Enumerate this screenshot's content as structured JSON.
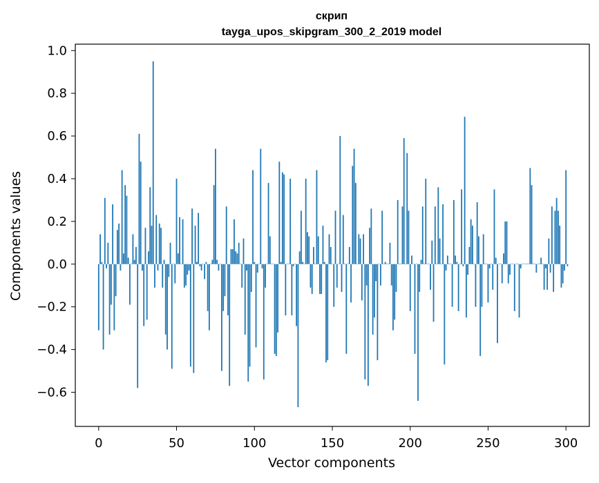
{
  "chart_data": {
    "type": "bar",
    "title_line1": "скрип",
    "title_line2": "tayga_upos_skipgram_300_2_2019 model",
    "xlabel": "Vector components",
    "ylabel": "Components values",
    "xlim": [
      -15,
      315
    ],
    "ylim": [
      -0.76,
      1.03
    ],
    "xticks": [
      0,
      50,
      100,
      150,
      200,
      250,
      300
    ],
    "xtick_labels": [
      "0",
      "50",
      "100",
      "150",
      "200",
      "250",
      "300"
    ],
    "yticks": [
      -0.6,
      -0.4,
      -0.2,
      0.0,
      0.2,
      0.4,
      0.6,
      0.8,
      1.0
    ],
    "ytick_labels": [
      "−0.6",
      "−0.4",
      "−0.2",
      "0.0",
      "0.2",
      "0.4",
      "0.6",
      "0.8",
      "1.0"
    ],
    "grid": false,
    "bar_color": "#1f77b4",
    "values": [
      -0.31,
      0.14,
      0.01,
      -0.4,
      0.31,
      -0.02,
      0.1,
      -0.33,
      -0.19,
      0.28,
      -0.31,
      -0.15,
      0.16,
      0.19,
      -0.03,
      0.44,
      0.05,
      0.37,
      0.32,
      0.03,
      -0.19,
      0.0,
      0.14,
      0.02,
      0.08,
      -0.58,
      0.61,
      0.48,
      -0.03,
      -0.29,
      0.17,
      -0.26,
      0.06,
      0.36,
      0.18,
      0.95,
      -0.11,
      0.23,
      -0.03,
      0.19,
      0.17,
      -0.11,
      0.02,
      -0.33,
      -0.4,
      -0.06,
      0.1,
      -0.49,
      0.0,
      -0.09,
      0.4,
      0.05,
      0.22,
      0.0,
      0.21,
      -0.11,
      -0.1,
      -0.05,
      -0.03,
      -0.48,
      0.26,
      -0.51,
      0.18,
      0.01,
      0.24,
      -0.01,
      -0.03,
      0.0,
      -0.07,
      0.01,
      -0.22,
      -0.31,
      0.0,
      0.02,
      0.37,
      0.54,
      0.02,
      -0.03,
      0.0,
      -0.5,
      -0.22,
      -0.15,
      0.27,
      -0.24,
      -0.57,
      0.07,
      0.07,
      0.21,
      0.06,
      0.05,
      0.1,
      0.0,
      -0.11,
      0.12,
      -0.33,
      -0.03,
      -0.55,
      -0.48,
      -0.13,
      0.44,
      0.01,
      -0.39,
      -0.04,
      0.0,
      0.54,
      -0.02,
      -0.54,
      -0.11,
      0.0,
      0.38,
      0.13,
      0.0,
      0.0,
      -0.42,
      -0.43,
      -0.32,
      0.48,
      0.01,
      0.43,
      0.42,
      -0.24,
      0.0,
      0.0,
      0.4,
      -0.24,
      -0.01,
      0.0,
      -0.29,
      -0.67,
      0.06,
      0.25,
      0.01,
      0.0,
      0.4,
      0.15,
      0.13,
      -0.11,
      -0.14,
      0.08,
      0.0,
      0.44,
      0.13,
      -0.14,
      -0.14,
      0.18,
      0.01,
      -0.46,
      -0.45,
      0.14,
      0.08,
      0.0,
      -0.2,
      0.25,
      -0.11,
      0.0,
      0.6,
      -0.13,
      0.23,
      0.0,
      -0.42,
      0.0,
      0.08,
      -0.18,
      0.46,
      0.54,
      0.38,
      0.0,
      0.14,
      0.12,
      -0.17,
      0.14,
      -0.54,
      -0.1,
      -0.57,
      0.17,
      0.26,
      -0.33,
      -0.25,
      -0.08,
      -0.45,
      0.0,
      -0.1,
      0.25,
      0.0,
      0.01,
      0.0,
      0.0,
      0.1,
      -0.1,
      -0.31,
      -0.26,
      -0.13,
      0.3,
      0.0,
      0.0,
      0.27,
      0.59,
      0.0,
      0.52,
      0.25,
      -0.22,
      0.04,
      0.0,
      -0.42,
      0.0,
      -0.64,
      -0.13,
      0.02,
      0.27,
      0.0,
      0.4,
      0.0,
      0.0,
      -0.12,
      0.11,
      -0.27,
      0.27,
      0.0,
      0.36,
      0.12,
      0.0,
      0.28,
      -0.47,
      -0.03,
      0.04,
      0.0,
      0.0,
      -0.2,
      0.3,
      0.04,
      0.01,
      -0.22,
      0.0,
      0.35,
      -0.01,
      0.69,
      -0.25,
      -0.05,
      0.08,
      0.21,
      0.18,
      0.0,
      -0.2,
      0.29,
      0.13,
      -0.43,
      -0.2,
      0.14,
      0.0,
      0.0,
      -0.18,
      -0.02,
      0.0,
      -0.12,
      0.35,
      0.03,
      -0.37,
      0.0,
      0.0,
      -0.09,
      0.05,
      0.2,
      0.2,
      -0.09,
      -0.05,
      0.0,
      0.0,
      -0.22,
      0.0,
      0.0,
      -0.25,
      -0.02,
      0.0,
      0.0,
      0.0,
      0.0,
      0.0,
      0.45,
      0.37,
      0.0,
      0.0,
      -0.04,
      0.0,
      0.0,
      0.03,
      0.0,
      -0.12,
      -0.02,
      -0.12,
      0.12,
      -0.04,
      0.27,
      -0.13,
      0.25,
      0.31,
      0.25,
      0.18,
      -0.11,
      -0.09,
      -0.03,
      0.44,
      -0.01
    ]
  }
}
